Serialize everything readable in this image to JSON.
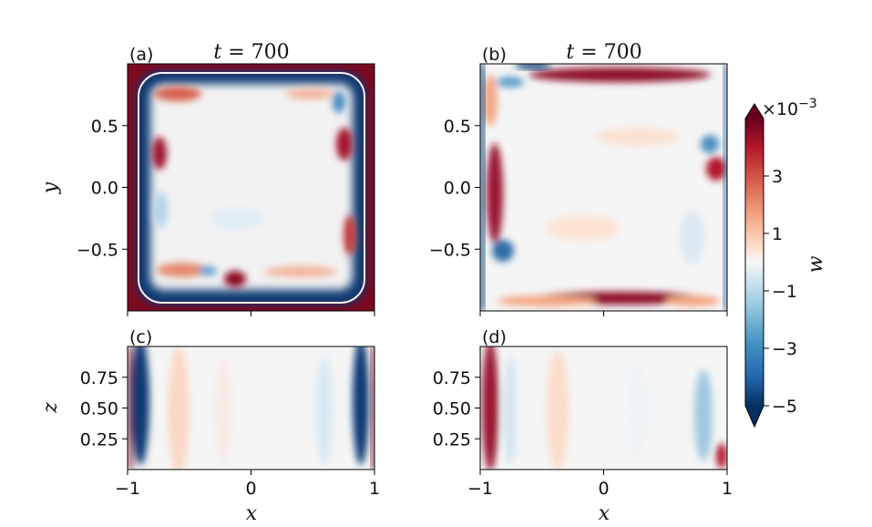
{
  "chart_data": {
    "type": "heatmap",
    "colorbar": {
      "label": "w",
      "multiplier": "×10",
      "multiplier_exponent": "−3",
      "range": [
        -5,
        5
      ],
      "extend": "both",
      "ticks": [
        -5,
        -3,
        -1,
        1,
        3
      ],
      "tick_labels": [
        "−5",
        "−3",
        "−1",
        "1",
        "3"
      ],
      "colormap": "RdBu_r",
      "color_stops": [
        "#053061",
        "#2166ac",
        "#4393c3",
        "#92c5de",
        "#d1e5f0",
        "#f7f7f7",
        "#fddbc7",
        "#f4a582",
        "#d6604d",
        "#b2182b",
        "#67001f"
      ]
    },
    "panels": [
      {
        "id": "a",
        "label": "(a)",
        "title_var": "t",
        "title_eq": " = 700",
        "t": 700,
        "plane": "xy",
        "xlabel": "",
        "ylabel": "y",
        "xlim": [
          -1,
          1
        ],
        "ylim": [
          -1,
          1
        ],
        "xticks": [],
        "yticks": [
          -0.5,
          0.0,
          0.5
        ],
        "ytick_labels": [
          "−0.5",
          "0.0",
          "0.5"
        ]
      },
      {
        "id": "b",
        "label": "(b)",
        "title_var": "t",
        "title_eq": " = 700",
        "t": 700,
        "plane": "xy",
        "xlabel": "",
        "ylabel": "",
        "xlim": [
          -1,
          1
        ],
        "ylim": [
          -1,
          1
        ],
        "xticks": [],
        "yticks": [
          -0.5,
          0.0,
          0.5
        ],
        "ytick_labels": [
          "−0.5",
          "0.0",
          "0.5"
        ]
      },
      {
        "id": "c",
        "label": "(c)",
        "plane": "xz",
        "xlabel": "x",
        "ylabel": "z",
        "xlim": [
          -1,
          1
        ],
        "ylim": [
          0,
          1
        ],
        "xticks": [
          -1,
          0,
          1
        ],
        "xtick_labels": [
          "−1",
          "0",
          "1"
        ],
        "yticks": [
          0.25,
          0.5,
          0.75
        ],
        "ytick_labels": [
          "0.25",
          "0.50",
          "0.75"
        ]
      },
      {
        "id": "d",
        "label": "(d)",
        "plane": "xz",
        "xlabel": "x",
        "ylabel": "",
        "xlim": [
          -1,
          1
        ],
        "ylim": [
          0,
          1
        ],
        "xticks": [
          -1,
          0,
          1
        ],
        "xtick_labels": [
          "−1",
          "0",
          "1"
        ],
        "yticks": [
          0.25,
          0.5,
          0.75
        ],
        "ytick_labels": [
          "0.25",
          "0.50",
          "0.75"
        ]
      }
    ]
  }
}
